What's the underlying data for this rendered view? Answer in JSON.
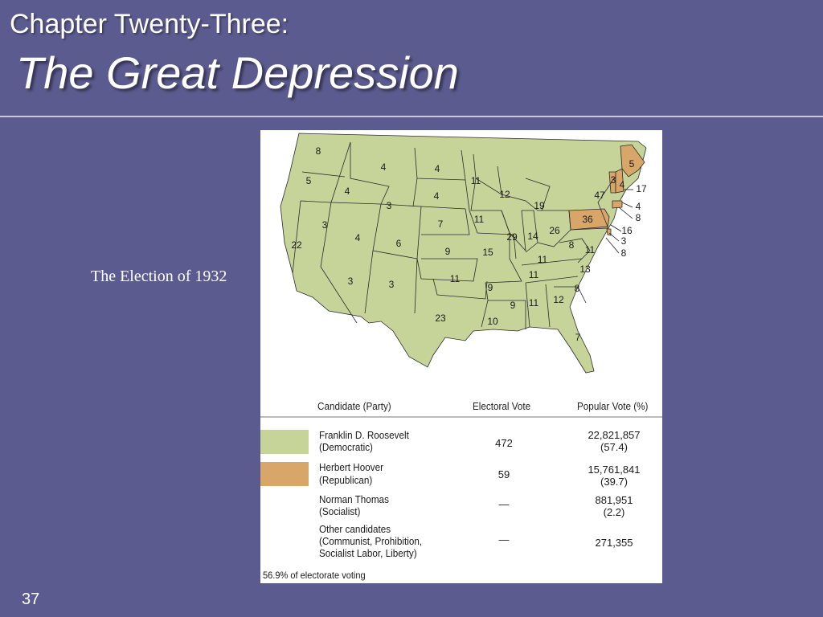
{
  "slide": {
    "chapter": "Chapter Twenty-Three:",
    "title": "The Great Depression",
    "caption": "The Election of 1932",
    "number": "37"
  },
  "colors": {
    "background": "#5c5b8f",
    "democratic": "#c6d49a",
    "republican": "#d9a66a"
  },
  "map": {
    "states": [
      {
        "abbr": "WA",
        "ev": "8",
        "party": "democratic"
      },
      {
        "abbr": "OR",
        "ev": "5",
        "party": "democratic"
      },
      {
        "abbr": "CA",
        "ev": "22",
        "party": "democratic"
      },
      {
        "abbr": "ID",
        "ev": "4",
        "party": "democratic"
      },
      {
        "abbr": "NV",
        "ev": "3",
        "party": "democratic"
      },
      {
        "abbr": "MT",
        "ev": "4",
        "party": "democratic"
      },
      {
        "abbr": "WY",
        "ev": "3",
        "party": "democratic"
      },
      {
        "abbr": "UT",
        "ev": "4",
        "party": "democratic"
      },
      {
        "abbr": "CO",
        "ev": "6",
        "party": "democratic"
      },
      {
        "abbr": "AZ",
        "ev": "3",
        "party": "democratic"
      },
      {
        "abbr": "NM",
        "ev": "3",
        "party": "democratic"
      },
      {
        "abbr": "ND",
        "ev": "4",
        "party": "democratic"
      },
      {
        "abbr": "SD",
        "ev": "4",
        "party": "democratic"
      },
      {
        "abbr": "NE",
        "ev": "7",
        "party": "democratic"
      },
      {
        "abbr": "KS",
        "ev": "9",
        "party": "democratic"
      },
      {
        "abbr": "OK",
        "ev": "11",
        "party": "democratic"
      },
      {
        "abbr": "TX",
        "ev": "23",
        "party": "democratic"
      },
      {
        "abbr": "MN",
        "ev": "11",
        "party": "democratic"
      },
      {
        "abbr": "IA",
        "ev": "11",
        "party": "democratic"
      },
      {
        "abbr": "MO",
        "ev": "15",
        "party": "democratic"
      },
      {
        "abbr": "AR",
        "ev": "9",
        "party": "democratic"
      },
      {
        "abbr": "LA",
        "ev": "10",
        "party": "democratic"
      },
      {
        "abbr": "WI",
        "ev": "12",
        "party": "democratic"
      },
      {
        "abbr": "IL",
        "ev": "29",
        "party": "democratic"
      },
      {
        "abbr": "MS",
        "ev": "9",
        "party": "democratic"
      },
      {
        "abbr": "MI",
        "ev": "19",
        "party": "democratic"
      },
      {
        "abbr": "IN",
        "ev": "14",
        "party": "democratic"
      },
      {
        "abbr": "KY",
        "ev": "11",
        "party": "democratic"
      },
      {
        "abbr": "TN",
        "ev": "11",
        "party": "democratic"
      },
      {
        "abbr": "AL",
        "ev": "11",
        "party": "democratic"
      },
      {
        "abbr": "OH",
        "ev": "26",
        "party": "democratic"
      },
      {
        "abbr": "WV",
        "ev": "8",
        "party": "democratic"
      },
      {
        "abbr": "VA",
        "ev": "11",
        "party": "democratic"
      },
      {
        "abbr": "NC",
        "ev": "13",
        "party": "democratic"
      },
      {
        "abbr": "SC",
        "ev": "8",
        "party": "democratic"
      },
      {
        "abbr": "GA",
        "ev": "12",
        "party": "democratic"
      },
      {
        "abbr": "FL",
        "ev": "7",
        "party": "democratic"
      },
      {
        "abbr": "PA",
        "ev": "36",
        "party": "republican"
      },
      {
        "abbr": "NY",
        "ev": "47",
        "party": "democratic"
      },
      {
        "abbr": "VT",
        "ev": "3",
        "party": "republican"
      },
      {
        "abbr": "NH",
        "ev": "4",
        "party": "republican"
      },
      {
        "abbr": "ME",
        "ev": "5",
        "party": "republican"
      },
      {
        "abbr": "MA",
        "ev": "17",
        "party": "democratic"
      },
      {
        "abbr": "RI",
        "ev": "4",
        "party": "democratic"
      },
      {
        "abbr": "CT",
        "ev": "8",
        "party": "republican"
      },
      {
        "abbr": "NJ",
        "ev": "16",
        "party": "democratic"
      },
      {
        "abbr": "DE",
        "ev": "3",
        "party": "republican"
      },
      {
        "abbr": "MD",
        "ev": "8",
        "party": "democratic"
      }
    ]
  },
  "table": {
    "headers": {
      "candidate": "Candidate (Party)",
      "electoral": "Electoral Vote",
      "popular": "Popular Vote (%)"
    },
    "rows": [
      {
        "name": "Franklin D. Roosevelt",
        "party": "(Democratic)",
        "electoral": "472",
        "popular": "22,821,857",
        "percent": "(57.4)",
        "color": "#c6d49a"
      },
      {
        "name": "Herbert Hoover",
        "party": "(Republican)",
        "electoral": "59",
        "popular": "15,761,841",
        "percent": "(39.7)",
        "color": "#d9a66a"
      },
      {
        "name": "Norman Thomas",
        "party": "(Socialist)",
        "electoral": "—",
        "popular": "881,951",
        "percent": "(2.2)"
      },
      {
        "name": "Other candidates",
        "party": "(Communist, Prohibition,",
        "party2": "Socialist Labor, Liberty)",
        "electoral": "—",
        "popular": "271,355"
      }
    ],
    "footnote": "56.9% of electorate voting"
  }
}
